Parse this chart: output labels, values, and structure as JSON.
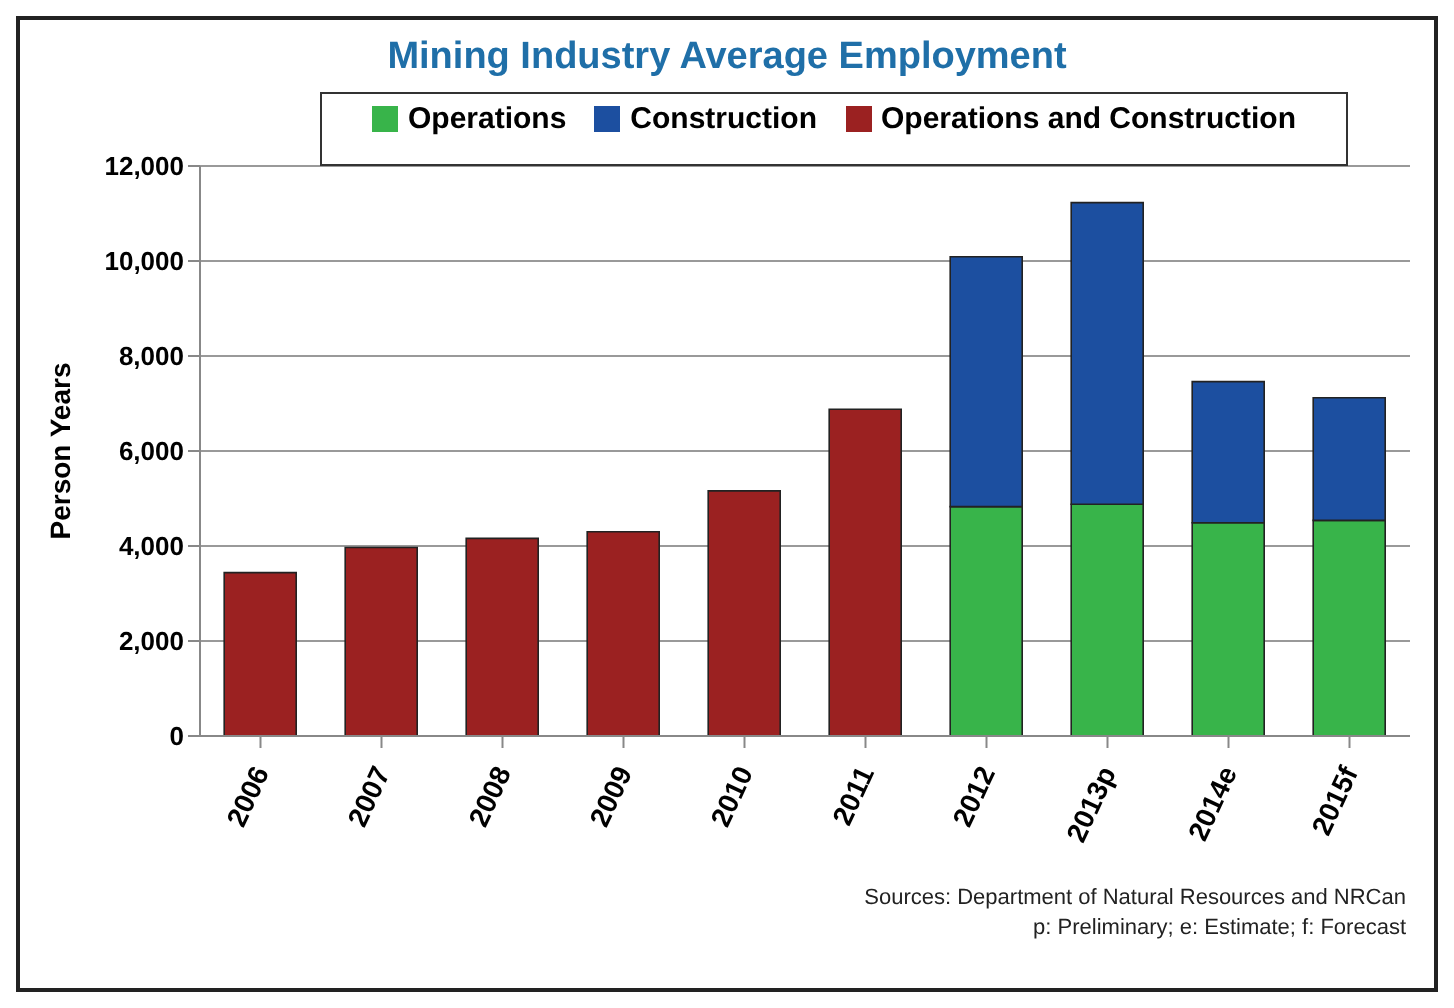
{
  "chart_data": {
    "type": "bar",
    "title": "Mining Industry Average Employment",
    "ylabel": "Person Years",
    "categories": [
      "2006",
      "2007",
      "2008",
      "2009",
      "2010",
      "2011",
      "2012",
      "2013p",
      "2014e",
      "2015f"
    ],
    "stacked": true,
    "series": [
      {
        "name": "Operations",
        "color": "#38b44a",
        "values": [
          null,
          null,
          null,
          null,
          null,
          null,
          4830,
          4880,
          4490,
          4540
        ]
      },
      {
        "name": "Construction",
        "color": "#1c4fa0",
        "values": [
          null,
          null,
          null,
          null,
          null,
          null,
          5260,
          6350,
          2970,
          2580
        ]
      },
      {
        "name": "Operations and Construction",
        "color": "#9b2121",
        "values": [
          3440,
          3970,
          4160,
          4300,
          5160,
          6880,
          null,
          null,
          null,
          null
        ]
      }
    ],
    "ylim": [
      0,
      12000
    ],
    "yticks": [
      0,
      {
        "value": 2000,
        "label": "2,000"
      },
      {
        "value": 4000,
        "label": "4,000"
      },
      {
        "value": 6000,
        "label": "6,000"
      },
      {
        "value": 8000,
        "label": "8,000"
      },
      {
        "value": 10000,
        "label": "10,000"
      },
      {
        "value": 12000,
        "label": "12,000"
      }
    ],
    "grid": "y",
    "legend": "top",
    "annotations": [
      "Sources: Department of Natural Resources and NRCan",
      "p: Preliminary; e: Estimate; f: Forecast"
    ]
  }
}
